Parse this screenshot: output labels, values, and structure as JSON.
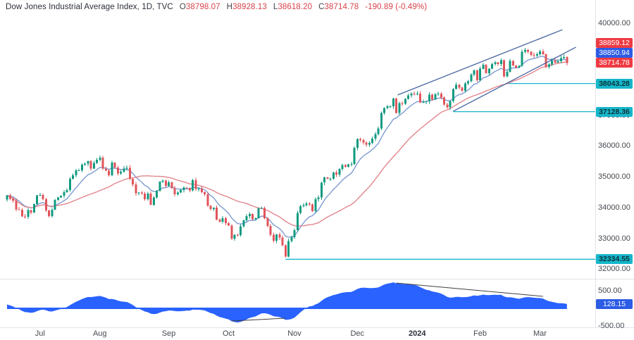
{
  "header": {
    "symbol_title": "Dow Jones Industrial Average Index, 1D, TVC",
    "ohlc": {
      "o_label": "O",
      "o_value": "38798.07",
      "h_label": "H",
      "h_value": "38928.13",
      "l_label": "L",
      "l_value": "38618.20",
      "c_label": "C",
      "c_value": "38714.78",
      "change": "-190.89 (-0.49%)"
    }
  },
  "price_axis": {
    "ticks": [
      {
        "label": "40000.00",
        "price": 40000
      },
      {
        "label": "37000.00",
        "price": 37000
      },
      {
        "label": "36000.00",
        "price": 36000
      },
      {
        "label": "35000.00",
        "price": 35000
      },
      {
        "label": "34000.00",
        "price": 34000
      },
      {
        "label": "33000.00",
        "price": 33000
      },
      {
        "label": "32000.00",
        "price": 32000
      }
    ],
    "badges": [
      {
        "label": "38859.12",
        "price": 38859.12,
        "color": "red"
      },
      {
        "label": "38850.94",
        "price": 38850.94,
        "color": "blue"
      },
      {
        "label": "38714.78",
        "price": 38714.78,
        "color": "red"
      },
      {
        "label": "38043.28",
        "price": 38043.28,
        "color": "cyan"
      },
      {
        "label": "37128.36",
        "price": 37128.36,
        "color": "cyan"
      },
      {
        "label": "32334.55",
        "price": 32334.55,
        "color": "cyan"
      }
    ]
  },
  "indicator_axis": {
    "ticks": [
      {
        "label": "500.00",
        "value": 500
      },
      {
        "label": "-500.00",
        "value": -500
      }
    ],
    "badge": {
      "label": "128.15",
      "value": 128.15,
      "color": "blue"
    }
  },
  "time_axis": {
    "months": [
      {
        "label": "Jul",
        "index": 11
      },
      {
        "label": "Aug",
        "index": 31
      },
      {
        "label": "Sep",
        "index": 54
      },
      {
        "label": "Oct",
        "index": 74
      },
      {
        "label": "Nov",
        "index": 96
      },
      {
        "label": "Dec",
        "index": 117
      },
      {
        "label": "2024",
        "index": 137,
        "emphasis": true
      },
      {
        "label": "Feb",
        "index": 158
      },
      {
        "label": "Mar",
        "index": 178
      }
    ]
  },
  "chart_data": {
    "type": "candlestick",
    "title": "Dow Jones Industrial Average Index",
    "interval": "1D",
    "exchange": "TVC",
    "last": {
      "open": 38798.07,
      "high": 38928.13,
      "low": 38618.2,
      "close": 38714.78,
      "change": -190.89,
      "change_pct": -0.49
    },
    "price_ylim": [
      31702,
      40183
    ],
    "closes": [
      34408,
      34299,
      34245,
      33951,
      33947,
      33727,
      33714,
      33926,
      33852,
      34122,
      34407,
      34418,
      34288,
      33922,
      33734,
      33944,
      34261,
      34347,
      34395,
      34509,
      34585,
      34951,
      35061,
      35225,
      35228,
      35411,
      35438,
      35520,
      35283,
      35459,
      35560,
      35631,
      35282,
      35216,
      35066,
      35473,
      35314,
      35123,
      35176,
      35281,
      35307,
      34946,
      34766,
      34475,
      34501,
      34464,
      34289,
      34473,
      34099,
      34347,
      34560,
      34853,
      34890,
      34722,
      34838,
      34642,
      34443,
      34501,
      34577,
      34664,
      34646,
      34576,
      34907,
      34618,
      34624,
      34518,
      34441,
      34070,
      33964,
      34007,
      33619,
      33550,
      33666,
      33508,
      33433,
      33002,
      33130,
      33119,
      33408,
      33605,
      33739,
      33805,
      33631,
      33670,
      33985,
      33997,
      33665,
      33414,
      33127,
      32937,
      33141,
      33036,
      32784,
      32418,
      32929,
      33053,
      33275,
      33839,
      34061,
      34096,
      34153,
      34112,
      33892,
      34283,
      34338,
      34828,
      34991,
      34945,
      34947,
      35151,
      35088,
      35273,
      35390,
      35333,
      35417,
      35430,
      35951,
      36245,
      36204,
      36124,
      36054,
      36117,
      36248,
      36405,
      36578,
      37090,
      37248,
      37305,
      37306,
      37558,
      37082,
      37404,
      37385,
      37545,
      37656,
      37710,
      37690,
      37715,
      37430,
      37440,
      37466,
      37683,
      37525,
      37696,
      37711,
      37593,
      37361,
      37267,
      37469,
      37864,
      38002,
      37905,
      37806,
      38049,
      38109,
      38333,
      38467,
      38150,
      38520,
      38654,
      38380,
      38521,
      38677,
      38726,
      38671,
      38797,
      38272,
      38424,
      38773,
      38628,
      38563,
      38612,
      39069,
      39131,
      39069,
      38972,
      38949,
      38996,
      39087,
      38989,
      38585,
      38661,
      38791,
      38722,
      38769,
      38871,
      38905.67,
      38714.78
    ],
    "overlays": [
      {
        "name": "fast-ma",
        "period": 10,
        "color_key": "ma_fast"
      },
      {
        "name": "slow-ma",
        "period": 30,
        "color_key": "ma_slow"
      }
    ],
    "levels": [
      {
        "price": 38043.28,
        "start_index": 167
      },
      {
        "price": 37128.36,
        "start_index": 149
      },
      {
        "price": 32334.55,
        "start_index": 93
      }
    ],
    "trendlines": [
      {
        "name": "channel-upper",
        "from": {
          "index": 130.5,
          "price": 37670
        },
        "to": {
          "index": 185.5,
          "price": 39790
        }
      },
      {
        "name": "channel-lower",
        "from": {
          "index": 149,
          "price": 37140
        },
        "to": {
          "index": 190,
          "price": 39220
        }
      }
    ],
    "indicator": {
      "type": "area-oscillator",
      "source": "macd(12,26)",
      "ylim": [
        -540,
        800
      ],
      "last": 128.15,
      "trendlines": [
        {
          "name": "osc-divergence-upper",
          "from": {
            "index": 130,
            "value": 720
          },
          "to": {
            "index": 179,
            "value": 340
          }
        },
        {
          "name": "osc-divergence-lower",
          "from": {
            "index": 75,
            "value": -360
          },
          "to": {
            "index": 93,
            "value": -280
          }
        }
      ]
    }
  },
  "colors": {
    "up": "#119a80",
    "down": "#e1545b",
    "ma_fast": "#7e9bd2",
    "ma_slow": "#e2868e",
    "trendline": "#44639f",
    "level": "#16b6ca",
    "badge_red": "#ef3a43",
    "badge_blue": "#2c5ce5",
    "badge_cyan": "#16b6ca",
    "osc_fill": "#2962fe",
    "divergence_line": "#3f3f3f",
    "divider": "#e0e3eb",
    "axis_text": "#45494f",
    "title_text": "#2a2e39",
    "value_red": "#d8424b"
  }
}
